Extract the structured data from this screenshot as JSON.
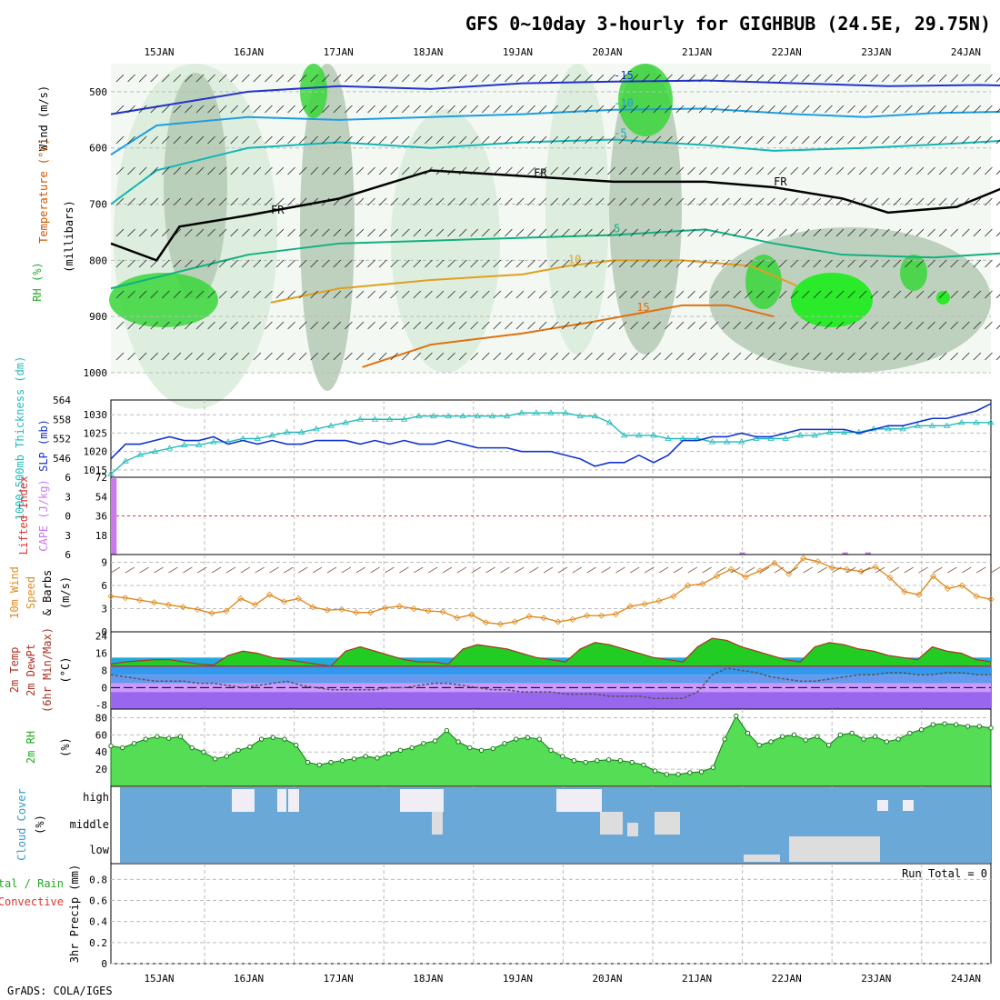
{
  "header": {
    "title": "GFS 0~10day 3-hourly for GIGHBUB (24.5E, 29.75N)",
    "credit": "GrADS: COLA/IGES"
  },
  "dates": [
    "15JAN",
    "16JAN",
    "17JAN",
    "18JAN",
    "19JAN",
    "20JAN",
    "21JAN",
    "22JAN",
    "23JAN",
    "24JAN"
  ],
  "colors": {
    "rh_light": "#d9ecd9",
    "rh_mid": "#b4c9b4",
    "rh_green": "#3ad63a",
    "rh_bright": "#11ee11",
    "contour_grey": "#aaaaaa",
    "t_neg15": "#2233cc",
    "t_neg10": "#1d9ee0",
    "t_neg5": "#13b6b6",
    "t_5": "#10b080",
    "t_10": "#e0a020",
    "t_15": "#e07010",
    "thick_line": "#22bbbb",
    "slp_line": "#1033cc",
    "cape_bar": "#cc77ee",
    "li_line": "#dd3333",
    "wind_line": "#e08a20",
    "barb_brown": "#8a5a3a",
    "temp_line": "#aa3322",
    "dew_line": "#555555",
    "cloud_bg": "#6aa8d8",
    "cloud_block": "#dddddd",
    "cloud_high_block": "#f0eef4"
  },
  "panels": {
    "upper": {
      "ylabel_wind": "Wind (m/s)",
      "ylabel_temp": "Temperature (°C)",
      "ylabel_rh": "RH (%)",
      "ylabel_units": "(millibars)",
      "fr_label": "FR"
    },
    "thickness": {
      "ylabel_thick": "1000-500mb Thickness (dm)",
      "ylabel_slp": "SLP (mb)"
    },
    "cape": {
      "ylabel_li": "Lifted Index",
      "ylabel_cape": "CAPE (J/kg)"
    },
    "wind10": {
      "ylabel_a": "10m Wind",
      "ylabel_b": "Speed",
      "ylabel_c": "& Barbs",
      "ylabel_units": "(m/s)"
    },
    "temp2m": {
      "ylabel_a": "2m Temp",
      "ylabel_b": "2m DewPt",
      "ylabel_c": "(6hr Min/Max)",
      "ylabel_units": "(°C)"
    },
    "rh2m": {
      "ylabel": "2m RH",
      "ylabel_units": "(%)"
    },
    "cloud": {
      "ylabel": "Cloud Cover",
      "ylabel_units": "(%)",
      "levels": [
        "high",
        "middle",
        "low"
      ]
    },
    "precip": {
      "ylabel_a": "Total / Rain",
      "ylabel_b": "Convective",
      "ylabel_c": "3hr Precip (mm)",
      "run_total": "Run Total = 0"
    }
  },
  "chart_data": [
    {
      "type": "contour",
      "panel": "upper-air pressure",
      "x_unit": "3-hourly steps from 14JAN 12Z",
      "y_axis": "pressure (millibars)",
      "ylim": [
        1000,
        450
      ],
      "yticks": [
        500,
        600,
        700,
        800,
        900,
        1000
      ],
      "temperature_contours": [
        {
          "label": "-15",
          "level": -15,
          "points": [
            [
              0,
              540
            ],
            [
              6,
              520
            ],
            [
              12,
              500
            ],
            [
              20,
              490
            ],
            [
              28,
              495
            ],
            [
              36,
              485
            ],
            [
              44,
              482
            ],
            [
              52,
              480
            ],
            [
              60,
              485
            ],
            [
              68,
              490
            ],
            [
              76,
              488
            ],
            [
              80,
              490
            ]
          ]
        },
        {
          "label": "-10",
          "level": -10,
          "points": [
            [
              0,
              612
            ],
            [
              4,
              560
            ],
            [
              12,
              545
            ],
            [
              20,
              550
            ],
            [
              28,
              545
            ],
            [
              36,
              540
            ],
            [
              44,
              532
            ],
            [
              52,
              530
            ],
            [
              60,
              540
            ],
            [
              66,
              545
            ],
            [
              72,
              538
            ],
            [
              80,
              535
            ]
          ]
        },
        {
          "label": "-5",
          "level": -5,
          "points": [
            [
              0,
              700
            ],
            [
              4,
              640
            ],
            [
              12,
              600
            ],
            [
              20,
              590
            ],
            [
              28,
              600
            ],
            [
              36,
              590
            ],
            [
              44,
              585
            ],
            [
              52,
              595
            ],
            [
              58,
              605
            ],
            [
              66,
              600
            ],
            [
              74,
              592
            ],
            [
              80,
              585
            ]
          ]
        },
        {
          "label": "5",
          "level": 5,
          "points": [
            [
              0,
              850
            ],
            [
              4,
              830
            ],
            [
              12,
              790
            ],
            [
              20,
              770
            ],
            [
              28,
              765
            ],
            [
              36,
              760
            ],
            [
              44,
              755
            ],
            [
              52,
              745
            ],
            [
              58,
              770
            ],
            [
              64,
              790
            ],
            [
              72,
              795
            ],
            [
              80,
              785
            ]
          ]
        },
        {
          "label": "10",
          "level": 10,
          "points": [
            [
              14,
              875
            ],
            [
              20,
              850
            ],
            [
              28,
              835
            ],
            [
              36,
              825
            ],
            [
              40,
              810
            ],
            [
              44,
              800
            ],
            [
              50,
              800
            ],
            [
              56,
              810
            ],
            [
              60,
              845
            ]
          ]
        },
        {
          "label": "15",
          "level": 15,
          "points": [
            [
              22,
              990
            ],
            [
              28,
              950
            ],
            [
              36,
              930
            ],
            [
              42,
              910
            ],
            [
              46,
              895
            ],
            [
              50,
              880
            ],
            [
              54,
              880
            ],
            [
              58,
              900
            ]
          ]
        }
      ],
      "freezing_level": {
        "label": "FR",
        "points": [
          [
            0,
            770
          ],
          [
            4,
            800
          ],
          [
            6,
            740
          ],
          [
            12,
            720
          ],
          [
            20,
            690
          ],
          [
            28,
            640
          ],
          [
            36,
            650
          ],
          [
            44,
            660
          ],
          [
            52,
            660
          ],
          [
            58,
            670
          ],
          [
            64,
            690
          ],
          [
            68,
            715
          ],
          [
            74,
            705
          ],
          [
            80,
            655
          ]
        ]
      },
      "rh_levels": [
        "50",
        "70",
        "80",
        "90"
      ]
    },
    {
      "type": "line",
      "panel": "1000-500mb thickness & SLP",
      "series": [
        {
          "name": "1000-500mb Thickness (dm)",
          "axis": "left",
          "yticks": [
            546,
            552,
            558,
            564
          ],
          "values": [
            541,
            545,
            547,
            548,
            549,
            550,
            550,
            551,
            551,
            552,
            552,
            553,
            554,
            554,
            555,
            556,
            557,
            558,
            558,
            558,
            558,
            559,
            559,
            559,
            559,
            559,
            559,
            559,
            560,
            560,
            560,
            560,
            559,
            559,
            557,
            553,
            553,
            553,
            552,
            552,
            552,
            551,
            551,
            551,
            552,
            552,
            552,
            553,
            553,
            554,
            554,
            554,
            555,
            555,
            555,
            556,
            556,
            556,
            557,
            557,
            557
          ]
        },
        {
          "name": "SLP (mb)",
          "axis": "right",
          "yticks": [
            1015,
            1020,
            1025,
            1030
          ],
          "values": [
            1018,
            1022,
            1022,
            1023,
            1024,
            1023,
            1023,
            1024,
            1022,
            1023,
            1022,
            1023,
            1022,
            1022,
            1023,
            1023,
            1023,
            1022,
            1023,
            1022,
            1023,
            1022,
            1022,
            1023,
            1022,
            1021,
            1021,
            1021,
            1020,
            1020,
            1020,
            1019,
            1018,
            1016,
            1017,
            1017,
            1019,
            1017,
            1019,
            1023,
            1023,
            1024,
            1024,
            1025,
            1024,
            1024,
            1025,
            1026,
            1026,
            1026,
            1026,
            1025,
            1026,
            1027,
            1027,
            1028,
            1029,
            1029,
            1030,
            1031,
            1033
          ]
        }
      ]
    },
    {
      "type": "bar",
      "panel": "CAPE / Lifted Index",
      "li_yticks": [
        -6,
        -3,
        0,
        3,
        6
      ],
      "cape_yticks": [
        18,
        36,
        54,
        72
      ],
      "cape_values": [
        {
          "step": 0,
          "value": 71
        },
        {
          "step": 55,
          "value": 2
        },
        {
          "step": 64,
          "value": 2
        },
        {
          "step": 66,
          "value": 2
        }
      ]
    },
    {
      "type": "line",
      "panel": "10m wind speed",
      "yticks": [
        0,
        3,
        6,
        9
      ],
      "values": [
        4.6,
        4.4,
        4.1,
        3.8,
        3.5,
        3.2,
        2.9,
        2.4,
        2.7,
        4.3,
        3.5,
        4.8,
        3.9,
        4.3,
        3.2,
        2.8,
        2.9,
        2.5,
        2.5,
        3.1,
        3.3,
        3.0,
        2.7,
        2.6,
        1.8,
        2.2,
        1.2,
        1.0,
        1.3,
        2.0,
        1.8,
        1.3,
        1.6,
        2.1,
        2.1,
        2.3,
        3.3,
        3.6,
        4.0,
        4.6,
        6.0,
        6.2,
        7.2,
        8.1,
        7.1,
        7.9,
        8.9,
        7.5,
        9.5,
        9.1,
        8.3,
        8.1,
        7.8,
        8.4,
        7.0,
        5.2,
        4.8,
        7.2,
        5.6,
        6.0,
        4.6,
        4.2
      ]
    },
    {
      "type": "area",
      "panel": "2m temperature & dew point",
      "yticks": [
        -8,
        0,
        8,
        16,
        24
      ],
      "temp_values": [
        11,
        12,
        12.5,
        13,
        13,
        12,
        11,
        10.5,
        15,
        17,
        16,
        14,
        13,
        12,
        11,
        10,
        17,
        19,
        17,
        15,
        13,
        12,
        12,
        11,
        18,
        20,
        19,
        18,
        16,
        14,
        13,
        12,
        18,
        21,
        20,
        18,
        16,
        14,
        13,
        12,
        19,
        23,
        22,
        19,
        17,
        15,
        13,
        12,
        19,
        21,
        20,
        18,
        17,
        15,
        14,
        13,
        19,
        17,
        16,
        13,
        12
      ]
    },
    {
      "type": "area",
      "panel": "2m RH",
      "yticks": [
        20,
        40,
        60,
        80
      ],
      "values": [
        47,
        45,
        50,
        55,
        58,
        56,
        58,
        45,
        40,
        32,
        35,
        42,
        46,
        55,
        57,
        55,
        48,
        28,
        25,
        28,
        30,
        32,
        35,
        33,
        38,
        42,
        45,
        50,
        53,
        65,
        52,
        45,
        42,
        44,
        50,
        55,
        57,
        55,
        42,
        35,
        30,
        28,
        30,
        31,
        30,
        28,
        25,
        18,
        14,
        14,
        16,
        17,
        22,
        55,
        82,
        62,
        48,
        52,
        58,
        60,
        54,
        58,
        48,
        60,
        62,
        55,
        58,
        52,
        55,
        62,
        66,
        72,
        73,
        72,
        70,
        70,
        68
      ]
    },
    {
      "type": "bar",
      "panel": "cloud cover",
      "levels": [
        "high",
        "middle",
        "low"
      ],
      "note": "percent cloud cover per level per 3hr step"
    },
    {
      "type": "bar",
      "panel": "3hr precip",
      "yticks": [
        0,
        0.2,
        0.4,
        0.6,
        0.8
      ],
      "values": [],
      "run_total": "Run Total = 0"
    }
  ]
}
